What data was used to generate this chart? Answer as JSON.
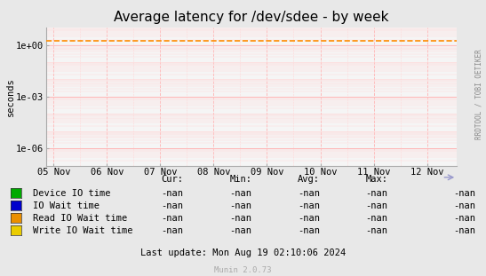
{
  "title": "Average latency for /dev/sdee - by week",
  "ylabel": "seconds",
  "background_color": "#e8e8e8",
  "plot_bg_color": "#f5f5f5",
  "right_label": "RRDTOOL / TOBI OETIKER",
  "x_tick_labels": [
    "05 Nov",
    "06 Nov",
    "07 Nov",
    "08 Nov",
    "09 Nov",
    "10 Nov",
    "11 Nov",
    "12 Nov"
  ],
  "y_ticks": [
    1e-06,
    0.001,
    1.0
  ],
  "y_tick_labels": [
    "1e-06",
    "1e-03",
    "1e+00"
  ],
  "dashed_line_y": 1.8,
  "dashed_line_color": "#ff8c00",
  "legend_entries": [
    {
      "label": "Device IO time",
      "color": "#00aa00"
    },
    {
      "label": "IO Wait time",
      "color": "#0000cc"
    },
    {
      "label": "Read IO Wait time",
      "color": "#ea8f00"
    },
    {
      "label": "Write IO Wait time",
      "color": "#eacc00"
    }
  ],
  "table_headers": [
    "Cur:",
    "Min:",
    "Avg:",
    "Max:"
  ],
  "table_value": "-nan",
  "footer": "Last update: Mon Aug 19 02:10:06 2024",
  "munin_version": "Munin 2.0.73",
  "title_fontsize": 11,
  "axis_fontsize": 7.5,
  "legend_fontsize": 7.5,
  "grid_major_color": "#ffb0b0",
  "grid_minor_color": "#ffd8d8",
  "spine_color": "#aaaaaa",
  "arrow_color": "#9999cc"
}
